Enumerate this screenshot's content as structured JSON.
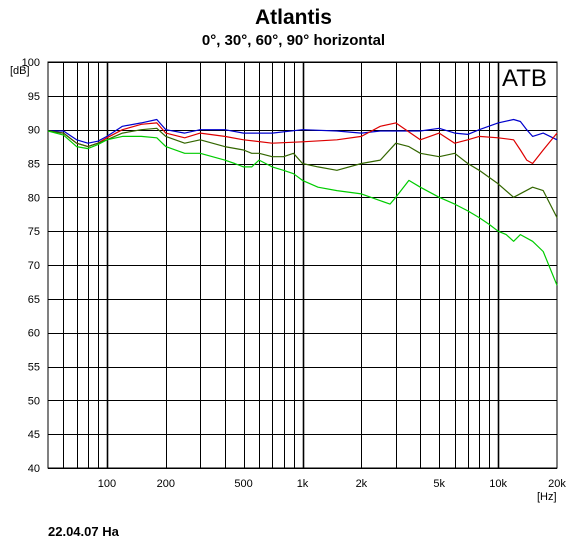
{
  "header": {
    "title": "Atlantis",
    "subtitle": "0°, 30°, 60°, 90° horizontal"
  },
  "footer": {
    "text": "22.04.07  Ha"
  },
  "brand_label": "ATB",
  "colors": {
    "grid": "#000000",
    "background": "#ffffff",
    "series_0deg": "#0000cc",
    "series_30deg": "#dd0000",
    "series_60deg": "#336600",
    "series_90deg": "#00cc00"
  },
  "chart_data": {
    "type": "line",
    "title": "Atlantis",
    "subtitle": "0°, 30°, 60°, 90° horizontal",
    "xlabel": "[Hz]",
    "ylabel": "[dB]",
    "x_scale": "log",
    "xlim": [
      50,
      20000
    ],
    "ylim": [
      40,
      100
    ],
    "grid": true,
    "x_tick_labels": [
      {
        "value": 100,
        "label": "100"
      },
      {
        "value": 200,
        "label": "200"
      },
      {
        "value": 500,
        "label": "500"
      },
      {
        "value": 1000,
        "label": "1k"
      },
      {
        "value": 2000,
        "label": "2k"
      },
      {
        "value": 5000,
        "label": "5k"
      },
      {
        "value": 10000,
        "label": "10k"
      },
      {
        "value": 20000,
        "label": "20k"
      }
    ],
    "y_ticks": [
      40,
      45,
      50,
      55,
      60,
      65,
      70,
      75,
      80,
      85,
      90,
      95,
      100
    ],
    "series": [
      {
        "color": "#0000cc",
        "x": [
          50,
          60,
          70,
          80,
          90,
          100,
          120,
          150,
          180,
          200,
          250,
          300,
          400,
          500,
          700,
          1000,
          1500,
          2000,
          2500,
          3000,
          4000,
          5000,
          6000,
          7000,
          8000,
          10000,
          12000,
          13000,
          14000,
          15000,
          17000,
          20000
        ],
        "values": [
          89.8,
          89.8,
          88.5,
          88.0,
          88.3,
          89.0,
          90.5,
          91.0,
          91.5,
          90.0,
          89.5,
          90.0,
          90.0,
          89.5,
          89.5,
          90.0,
          89.8,
          89.5,
          89.8,
          89.8,
          89.8,
          90.2,
          89.5,
          89.3,
          90.0,
          91.0,
          91.5,
          91.2,
          90.0,
          89.0,
          89.5,
          88.5
        ]
      },
      {
        "color": "#dd0000",
        "x": [
          50,
          60,
          70,
          80,
          90,
          100,
          120,
          150,
          180,
          200,
          250,
          300,
          400,
          500,
          700,
          1000,
          1500,
          2000,
          2500,
          3000,
          4000,
          5000,
          6000,
          7000,
          8000,
          10000,
          12000,
          13000,
          14000,
          15000,
          17000,
          20000
        ],
        "values": [
          89.8,
          89.5,
          88.0,
          87.5,
          88.0,
          88.8,
          90.0,
          90.8,
          91.0,
          89.5,
          88.8,
          89.5,
          89.0,
          88.5,
          88.0,
          88.2,
          88.5,
          89.0,
          90.5,
          91.0,
          88.5,
          89.5,
          88.0,
          88.5,
          89.0,
          88.8,
          88.5,
          87.0,
          85.5,
          85.0,
          87.0,
          89.5
        ]
      },
      {
        "color": "#336600",
        "x": [
          50,
          60,
          70,
          80,
          90,
          100,
          120,
          150,
          180,
          200,
          250,
          300,
          400,
          500,
          550,
          600,
          700,
          800,
          900,
          1000,
          1200,
          1500,
          2000,
          2500,
          3000,
          3500,
          4000,
          5000,
          6000,
          7000,
          8000,
          10000,
          12000,
          15000,
          17000,
          20000
        ],
        "values": [
          89.8,
          89.5,
          88.0,
          87.5,
          88.0,
          88.5,
          89.5,
          90.0,
          90.2,
          89.0,
          88.0,
          88.5,
          87.5,
          87.0,
          86.5,
          86.5,
          86.0,
          86.0,
          86.5,
          85.0,
          84.5,
          84.0,
          85.0,
          85.5,
          88.0,
          87.5,
          86.5,
          86.0,
          86.5,
          85.0,
          84.0,
          82.0,
          80.0,
          81.5,
          81.0,
          77.0
        ]
      },
      {
        "color": "#00cc00",
        "x": [
          50,
          60,
          70,
          80,
          90,
          100,
          120,
          150,
          180,
          200,
          250,
          300,
          400,
          450,
          500,
          550,
          600,
          700,
          800,
          900,
          1000,
          1200,
          1500,
          2000,
          2500,
          2800,
          3000,
          3500,
          4000,
          5000,
          6000,
          7000,
          8000,
          9000,
          10000,
          11000,
          12000,
          13000,
          15000,
          17000,
          20000
        ],
        "values": [
          89.8,
          89.2,
          87.5,
          87.2,
          87.8,
          88.5,
          89.0,
          89.0,
          88.8,
          87.5,
          86.5,
          86.5,
          85.5,
          85.0,
          84.5,
          84.5,
          85.5,
          84.5,
          84.0,
          83.5,
          82.5,
          81.5,
          81.0,
          80.5,
          79.5,
          79.0,
          80.0,
          82.5,
          81.5,
          80.0,
          79.0,
          78.0,
          77.0,
          76.0,
          75.0,
          74.5,
          73.5,
          74.5,
          73.5,
          72.0,
          67.0
        ]
      }
    ]
  }
}
